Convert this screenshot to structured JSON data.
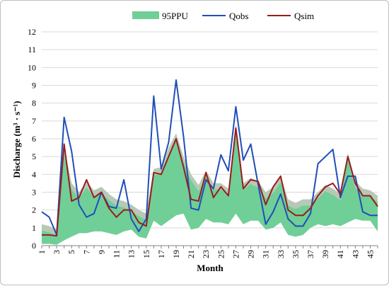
{
  "chart_data": {
    "type": "line",
    "title": "",
    "xlabel": "Month",
    "ylabel": "Discharge (m³ · s⁻¹)",
    "ylim": [
      0,
      12
    ],
    "yticks": [
      0,
      1,
      2,
      3,
      4,
      5,
      6,
      7,
      8,
      9,
      10,
      11,
      12
    ],
    "xlim": [
      1,
      46
    ],
    "xticks": [
      1,
      3,
      5,
      7,
      9,
      11,
      13,
      15,
      17,
      19,
      21,
      23,
      25,
      27,
      29,
      31,
      33,
      35,
      37,
      39,
      41,
      43,
      45
    ],
    "grid": true,
    "legend_position": "top",
    "colors": {
      "band": "#6fcf97",
      "band_upper_tint": "#f2c4cf",
      "qobs": "#1f4fb8",
      "qsim": "#9b1c1c",
      "grid": "#d9d9d9"
    },
    "x": [
      1,
      2,
      3,
      4,
      5,
      6,
      7,
      8,
      9,
      10,
      11,
      12,
      13,
      14,
      15,
      16,
      17,
      18,
      19,
      20,
      21,
      22,
      23,
      24,
      25,
      26,
      27,
      28,
      29,
      30,
      31,
      32,
      33,
      34,
      35,
      36,
      37,
      38,
      39,
      40,
      41,
      42,
      43,
      44,
      45,
      46
    ],
    "band": {
      "name": "95PPU",
      "lower": [
        0.1,
        0.1,
        0.05,
        0.3,
        0.5,
        0.7,
        0.7,
        0.8,
        0.8,
        0.7,
        0.6,
        0.8,
        0.9,
        0.5,
        0.4,
        1.4,
        1.1,
        1.4,
        1.7,
        1.8,
        0.9,
        1.0,
        1.5,
        1.3,
        1.3,
        1.2,
        1.8,
        1.2,
        1.4,
        1.4,
        0.9,
        1.0,
        1.3,
        0.6,
        0.5,
        0.6,
        1.0,
        1.2,
        1.1,
        1.2,
        1.1,
        1.3,
        1.5,
        1.4,
        1.4,
        0.8
      ],
      "upper": [
        1.2,
        1.1,
        0.9,
        5.5,
        3.5,
        3.0,
        3.6,
        3.1,
        3.3,
        2.9,
        2.6,
        2.5,
        2.3,
        2.0,
        1.8,
        4.3,
        4.4,
        5.5,
        6.3,
        5.0,
        4.0,
        3.4,
        4.2,
        3.5,
        3.5,
        3.2,
        6.8,
        3.5,
        3.8,
        3.6,
        3.0,
        3.3,
        3.9,
        2.6,
        2.4,
        2.6,
        2.6,
        3.0,
        3.4,
        3.2,
        2.9,
        5.2,
        3.6,
        3.2,
        3.1,
        2.8
      ]
    },
    "series": [
      {
        "name": "Qobs",
        "values": [
          1.9,
          1.6,
          0.6,
          7.2,
          5.3,
          2.3,
          1.6,
          1.8,
          3.0,
          2.2,
          2.1,
          3.7,
          1.5,
          0.8,
          1.5,
          8.4,
          4.3,
          5.8,
          9.3,
          6.1,
          2.1,
          2.0,
          3.7,
          3.2,
          5.1,
          4.2,
          7.8,
          4.8,
          5.7,
          3.4,
          1.2,
          1.9,
          2.9,
          1.5,
          1.1,
          1.1,
          1.8,
          4.6,
          5.0,
          5.4,
          2.7,
          3.9,
          3.9,
          1.9,
          1.7,
          1.7
        ]
      },
      {
        "name": "Qsim",
        "values": [
          0.6,
          0.6,
          0.55,
          5.7,
          2.5,
          2.7,
          3.7,
          2.7,
          3.0,
          2.1,
          1.6,
          2.0,
          2.0,
          1.3,
          1.1,
          4.1,
          4.0,
          5.0,
          6.0,
          4.4,
          2.6,
          2.5,
          4.1,
          2.7,
          3.3,
          2.8,
          6.6,
          3.2,
          3.7,
          3.6,
          2.3,
          3.3,
          3.9,
          2.0,
          1.7,
          1.7,
          2.1,
          2.8,
          3.3,
          3.5,
          2.9,
          5.0,
          3.5,
          2.8,
          2.8,
          2.2
        ]
      }
    ]
  }
}
